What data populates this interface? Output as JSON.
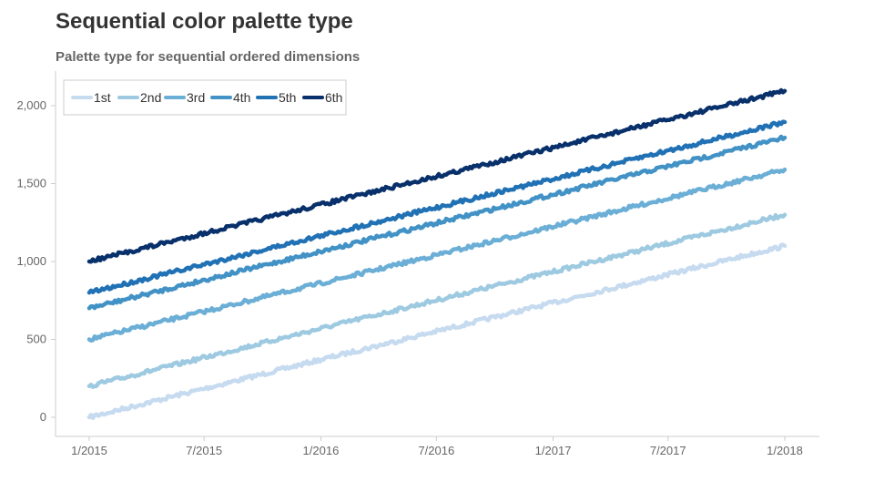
{
  "title": "Sequential color palette type",
  "subtitle": "Palette type for sequential ordered dimensions",
  "chart_data": {
    "type": "line",
    "x_range": [
      "2015-01-01",
      "2018-01-01"
    ],
    "ylim": [
      -120,
      2200
    ],
    "y_ticks": [
      0,
      500,
      1000,
      1500,
      2000
    ],
    "y_tick_labels": [
      "0",
      "500",
      "1,000",
      "1,500",
      "2,000"
    ],
    "x_ticks": [
      "2015-01-01",
      "2015-07-01",
      "2016-01-01",
      "2016-07-01",
      "2017-01-01",
      "2017-07-01",
      "2018-01-01"
    ],
    "x_tick_labels": [
      "1/2015",
      "7/2015",
      "1/2016",
      "7/2016",
      "1/2017",
      "7/2017",
      "1/2018"
    ],
    "grid": false,
    "legend_position": "top-left",
    "series": [
      {
        "name": "1st",
        "color": "#c6dbef",
        "x": [
          "2015-01-01",
          "2016-01-01",
          "2017-01-01",
          "2018-01-01"
        ],
        "values": [
          0,
          370,
          735,
          1100
        ]
      },
      {
        "name": "2nd",
        "color": "#9ecae1",
        "x": [
          "2015-01-01",
          "2016-01-01",
          "2017-01-01",
          "2018-01-01"
        ],
        "values": [
          200,
          570,
          935,
          1300
        ]
      },
      {
        "name": "3rd",
        "color": "#6baed6",
        "x": [
          "2015-01-01",
          "2016-01-01",
          "2017-01-01",
          "2018-01-01"
        ],
        "values": [
          500,
          860,
          1225,
          1590
        ]
      },
      {
        "name": "4th",
        "color": "#4292c6",
        "x": [
          "2015-01-01",
          "2016-01-01",
          "2017-01-01",
          "2018-01-01"
        ],
        "values": [
          700,
          1065,
          1430,
          1795
        ]
      },
      {
        "name": "5th",
        "color": "#2171b5",
        "x": [
          "2015-01-01",
          "2016-01-01",
          "2017-01-01",
          "2018-01-01"
        ],
        "values": [
          800,
          1165,
          1530,
          1895
        ]
      },
      {
        "name": "6th",
        "color": "#08306b",
        "x": [
          "2015-01-01",
          "2016-01-01",
          "2017-01-01",
          "2018-01-01"
        ],
        "values": [
          1000,
          1365,
          1730,
          2095
        ]
      }
    ]
  }
}
